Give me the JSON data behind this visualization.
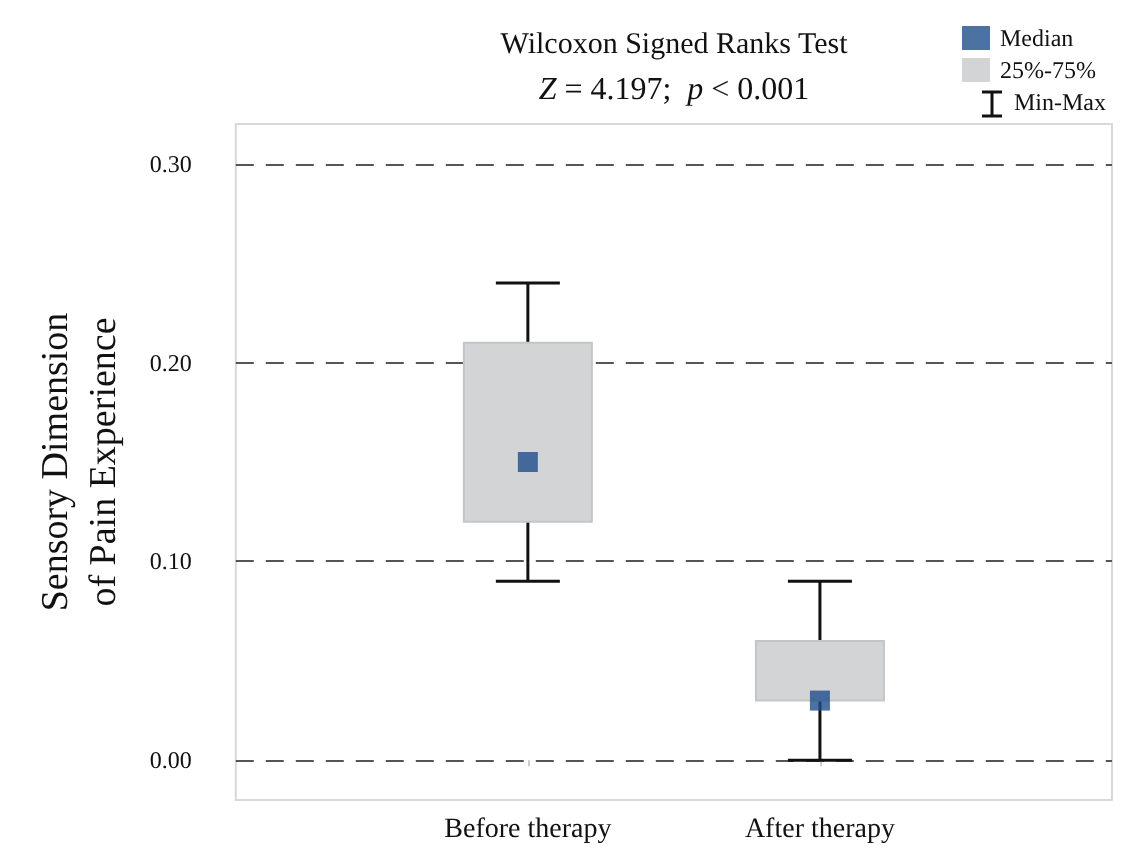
{
  "chart_data": {
    "type": "box",
    "title": "Wilcoxon Signed Ranks Test",
    "subtitle": "Z = 4.197;  p < 0.001",
    "ylabel": "Sensory Dimension\nof Pain Experience",
    "categories": [
      "Before therapy",
      "After therapy"
    ],
    "series": [
      {
        "name": "Median",
        "type": "scatter",
        "color": "#1f4e8c",
        "x": [
          "Before therapy",
          "After therapy"
        ],
        "values": [
          0.15,
          0.03
        ]
      },
      {
        "name": "25%-75%",
        "color": "#d3d4d6",
        "boxes": [
          {
            "low": 0.09,
            "q1": 0.12,
            "q3": 0.21,
            "high": 0.24
          },
          {
            "low": 0,
            "q1": 0.03,
            "q3": 0.06,
            "high": 0.09
          }
        ]
      }
    ],
    "annotations": [
      "Min-Max"
    ],
    "ylim": [
      -0.02,
      0.32
    ],
    "yticks": [
      {
        "value": 0,
        "label": "0.00"
      },
      {
        "value": 0.1,
        "label": "0.10"
      },
      {
        "value": 0.2,
        "label": "0.20"
      },
      {
        "value": 0.3,
        "label": "0.30"
      }
    ],
    "grid": "y",
    "legend": "top right",
    "marker": "square"
  }
}
